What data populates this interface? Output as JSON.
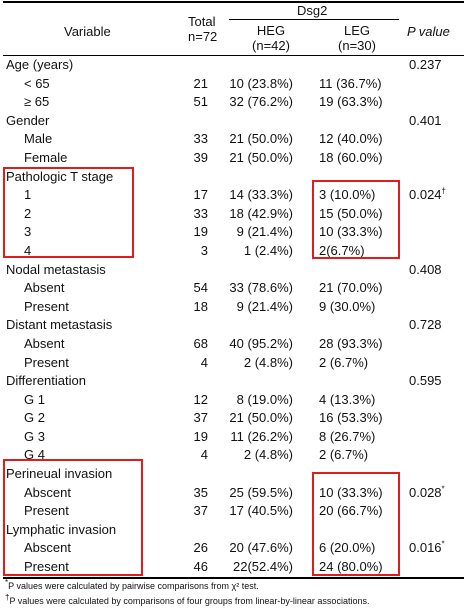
{
  "header": {
    "variable": "Variable",
    "total_line1": "Total",
    "total_line2": "n=72",
    "dsg2": "Dsg2",
    "heg": "HEG",
    "heg_n": "(n=42)",
    "leg": "LEG",
    "leg_n": "(n=30)",
    "p_value": "P value"
  },
  "rows": [
    {
      "variable": "Age (years)",
      "total": "",
      "heg": "",
      "leg": "",
      "p": "0.237",
      "p_sup": "",
      "sub": false
    },
    {
      "variable": "< 65",
      "total": "21",
      "heg": "10 (23.8%)",
      "leg": "11 (36.7%)",
      "p": "",
      "p_sup": "",
      "sub": true
    },
    {
      "variable": "≥ 65",
      "total": "51",
      "heg": "32 (76.2%)",
      "leg": "19 (63.3%)",
      "p": "",
      "p_sup": "",
      "sub": true
    },
    {
      "variable": "Gender",
      "total": "",
      "heg": "",
      "leg": "",
      "p": "0.401",
      "p_sup": "",
      "sub": false
    },
    {
      "variable": "Male",
      "total": "33",
      "heg": "21 (50.0%)",
      "leg": "12 (40.0%)",
      "p": "",
      "p_sup": "",
      "sub": true
    },
    {
      "variable": "Female",
      "total": "39",
      "heg": "21 (50.0%)",
      "leg": "18 (60.0%)",
      "p": "",
      "p_sup": "",
      "sub": true
    },
    {
      "variable": "Pathologic T stage",
      "total": "",
      "heg": "",
      "leg": "",
      "p": "",
      "p_sup": "",
      "sub": false
    },
    {
      "variable": "1",
      "total": "17",
      "heg": "14 (33.3%)",
      "leg": "3 (10.0%)",
      "p": "0.024",
      "p_sup": "†",
      "sub": true
    },
    {
      "variable": "2",
      "total": "33",
      "heg": "18 (42.9%)",
      "leg": "15 (50.0%)",
      "p": "",
      "p_sup": "",
      "sub": true
    },
    {
      "variable": "3",
      "total": "19",
      "heg": "9 (21.4%)",
      "leg": "10 (33.3%)",
      "p": "",
      "p_sup": "",
      "sub": true
    },
    {
      "variable": "4",
      "total": "3",
      "heg": "1 (2.4%)",
      "leg": "2(6.7%)",
      "p": "",
      "p_sup": "",
      "sub": true
    },
    {
      "variable": "Nodal metastasis",
      "total": "",
      "heg": "",
      "leg": "",
      "p": "0.408",
      "p_sup": "",
      "sub": false
    },
    {
      "variable": "Absent",
      "total": "54",
      "heg": "33 (78.6%)",
      "leg": "21 (70.0%)",
      "p": "",
      "p_sup": "",
      "sub": true
    },
    {
      "variable": "Present",
      "total": "18",
      "heg": "9 (21.4%)",
      "leg": "9 (30.0%)",
      "p": "",
      "p_sup": "",
      "sub": true
    },
    {
      "variable": "Distant metastasis",
      "total": "",
      "heg": "",
      "leg": "",
      "p": "0.728",
      "p_sup": "",
      "sub": false
    },
    {
      "variable": "Absent",
      "total": "68",
      "heg": "40 (95.2%)",
      "leg": "28 (93.3%)",
      "p": "",
      "p_sup": "",
      "sub": true
    },
    {
      "variable": "Present",
      "total": "4",
      "heg": "2 (4.8%)",
      "leg": "2 (6.7%)",
      "p": "",
      "p_sup": "",
      "sub": true
    },
    {
      "variable": "Differentiation",
      "total": "",
      "heg": "",
      "leg": "",
      "p": "0.595",
      "p_sup": "",
      "sub": false
    },
    {
      "variable": "G 1",
      "total": "12",
      "heg": "8 (19.0%)",
      "leg": "4 (13.3%)",
      "p": "",
      "p_sup": "",
      "sub": true
    },
    {
      "variable": "G 2",
      "total": "37",
      "heg": "21 (50.0%)",
      "leg": "16 (53.3%)",
      "p": "",
      "p_sup": "",
      "sub": true
    },
    {
      "variable": "G 3",
      "total": "19",
      "heg": "11 (26.2%)",
      "leg": "8 (26.7%)",
      "p": "",
      "p_sup": "",
      "sub": true
    },
    {
      "variable": "G 4",
      "total": "4",
      "heg": "2 (4.8%)",
      "leg": "2 (6.7%)",
      "p": "",
      "p_sup": "",
      "sub": true
    },
    {
      "variable": "Perineual invasion",
      "total": "",
      "heg": "",
      "leg": "",
      "p": "",
      "p_sup": "",
      "sub": false
    },
    {
      "variable": "Abscent",
      "total": "35",
      "heg": "25 (59.5%)",
      "leg": "10 (33.3%)",
      "p": "0.028",
      "p_sup": "*",
      "sub": true
    },
    {
      "variable": "Present",
      "total": "37",
      "heg": "17 (40.5%)",
      "leg": "20 (66.7%)",
      "p": "",
      "p_sup": "",
      "sub": true
    },
    {
      "variable": "Lymphatic invasion",
      "total": "",
      "heg": "",
      "leg": "",
      "p": "",
      "p_sup": "",
      "sub": false
    },
    {
      "variable": "Abscent",
      "total": "26",
      "heg": "20 (47.6%)",
      "leg": "6 (20.0%)",
      "p": "0.016",
      "p_sup": "*",
      "sub": true
    },
    {
      "variable": "Present",
      "total": "46",
      "heg": "22(52.4%)",
      "leg": "24 (80.0%)",
      "p": "",
      "p_sup": "",
      "sub": true
    }
  ],
  "footnotes": {
    "note1_mark": "*",
    "note1_text": "P values were calculated by pairwise comparisons from χ² test.",
    "note2_mark": "†",
    "note2_text": "P values were calculated by comparisons of four groups from linear-by-linear associations."
  },
  "highlight_color": "#e11c1c"
}
